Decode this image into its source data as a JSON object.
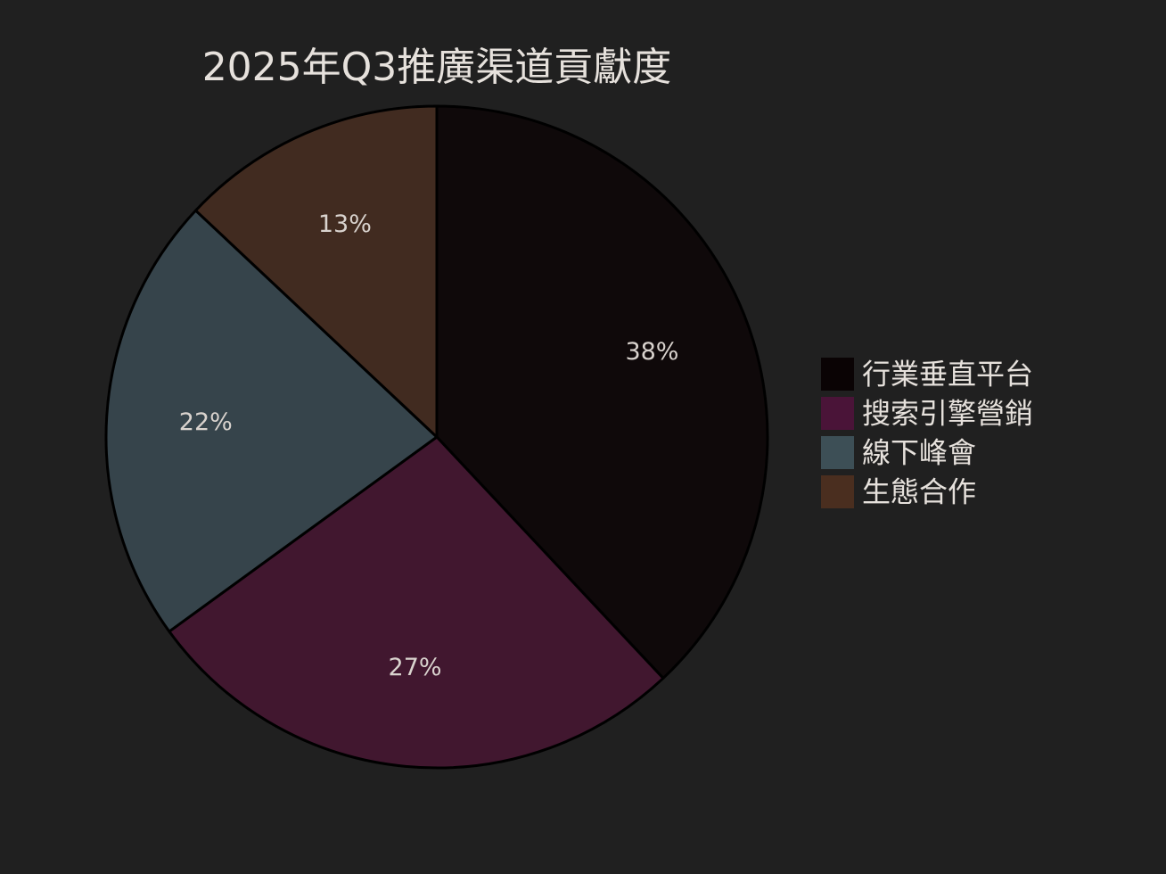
{
  "chart_data": {
    "type": "pie",
    "title": "2025年Q3推廣渠道貢獻度",
    "categories": [
      "行業垂直平台",
      "搜索引擎營銷",
      "線下峰會",
      "生態合作"
    ],
    "values": [
      38,
      27,
      22,
      13
    ],
    "value_labels": [
      "38%",
      "27%",
      "22%",
      "13%"
    ],
    "colors": [
      "#0f090a",
      "#41172f",
      "#36444b",
      "#412b20"
    ],
    "legend_colors": [
      "#0a0304",
      "#4a1438",
      "#3d4f56",
      "#4a2e1f"
    ],
    "start_angle": "12 o'clock",
    "direction": "clockwise",
    "legend_placement": "right"
  }
}
